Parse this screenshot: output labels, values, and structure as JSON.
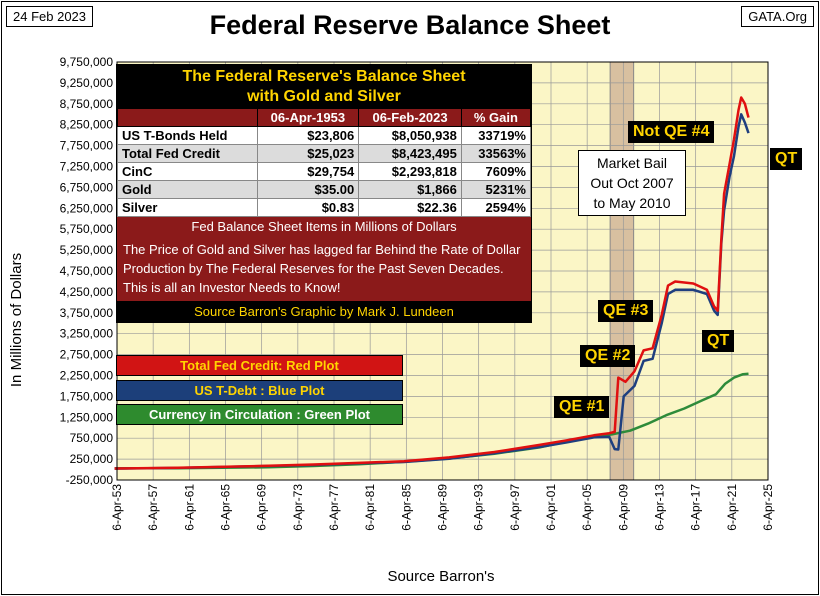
{
  "header": {
    "date": "24 Feb 2023",
    "source": "GATA.Org",
    "title": "Federal Reserve Balance Sheet"
  },
  "axes": {
    "ylabel": "In Millions of Dollars",
    "xlabel": "Source Barron's"
  },
  "info": {
    "title_line1": "The Federal Reserve's Balance Sheet",
    "title_line2": "with Gold and Silver",
    "columns": [
      "",
      "06-Apr-1953",
      "06-Feb-2023",
      "% Gain"
    ],
    "rows": [
      {
        "label": "US T-Bonds Held",
        "v1953": "$23,806",
        "v2023": "$8,050,938",
        "gain": "33719%"
      },
      {
        "label": "Total Fed Credit",
        "v1953": "$25,023",
        "v2023": "$8,423,495",
        "gain": "33563%"
      },
      {
        "label": "CinC",
        "v1953": "$29,754",
        "v2023": "$2,293,818",
        "gain": "7609%"
      },
      {
        "label": "Gold",
        "v1953": "$35.00",
        "v2023": "$1,866",
        "gain": "5231%"
      },
      {
        "label": "Silver",
        "v1953": "$0.83",
        "v2023": "$22.36",
        "gain": "2594%"
      }
    ],
    "units_note": "Fed Balance Sheet Items in Millions of Dollars",
    "paragraph": "The Price of Gold and Silver has lagged far Behind the Rate of Dollar Production by The Federal Reserves for the Past Seven Decades.  This is all an Investor Needs to Know!",
    "footer": "Source Barron's   Graphic by Mark J. Lundeen"
  },
  "legend": {
    "red": "Total Fed Credit: Red Plot",
    "blue": "US T-Debt : Blue Plot",
    "green": "Currency in Circulation : Green Plot"
  },
  "annotations": {
    "qe1": "QE #1",
    "qe2": "QE #2",
    "qe3": "QE #3",
    "qe4": "Not QE #4",
    "qt1": "QT",
    "qt2": "QT",
    "market_line1": "Market Bail",
    "market_line2": "Out Oct 2007",
    "market_line3": "to May 2010"
  },
  "colors": {
    "plot_bg": "#fbf6c6",
    "shade": "#d8c0a0",
    "fed_credit": "#e01010",
    "t_debt": "#1f3f7f",
    "cinc": "#2e8b3a"
  },
  "chart_data": {
    "type": "line",
    "y_ticks": [
      "-250,000",
      "250,000",
      "750,000",
      "1,250,000",
      "1,750,000",
      "2,250,000",
      "2,750,000",
      "3,250,000",
      "3,750,000",
      "4,250,000",
      "4,750,000",
      "5,250,000",
      "5,750,000",
      "6,250,000",
      "6,750,000",
      "7,250,000",
      "7,750,000",
      "8,250,000",
      "8,750,000",
      "9,250,000",
      "9,750,000"
    ],
    "x_ticks": [
      "6-Apr-53",
      "6-Apr-57",
      "6-Apr-61",
      "6-Apr-65",
      "6-Apr-69",
      "6-Apr-73",
      "6-Apr-77",
      "6-Apr-81",
      "6-Apr-85",
      "6-Apr-89",
      "6-Apr-93",
      "6-Apr-97",
      "6-Apr-01",
      "6-Apr-05",
      "6-Apr-09",
      "6-Apr-13",
      "6-Apr-17",
      "6-Apr-21",
      "6-Apr-25"
    ],
    "x_range": [
      1953.26,
      2025.26
    ],
    "y_range": [
      -250000,
      9750000
    ],
    "shaded_period": [
      2007.8,
      2010.4
    ],
    "series": [
      {
        "name": "Total Fed Credit",
        "color": "#e01010",
        "x": [
          1953,
          1960,
          1970,
          1975,
          1980,
          1985,
          1990,
          1995,
          2000,
          2003,
          2006,
          2007.7,
          2008.3,
          2008.7,
          2009.5,
          2010.5,
          2011.5,
          2012.5,
          2013.5,
          2014.2,
          2015,
          2017,
          2018.5,
          2019.3,
          2019.7,
          2020.1,
          2020.4,
          2021,
          2021.5,
          2022,
          2022.3,
          2022.7,
          2023.1
        ],
        "y": [
          25023,
          45000,
          90000,
          120000,
          160000,
          200000,
          290000,
          420000,
          590000,
          700000,
          820000,
          870000,
          900000,
          2200000,
          2100000,
          2350000,
          2850000,
          2900000,
          3700000,
          4400000,
          4500000,
          4450000,
          4300000,
          3900000,
          3800000,
          5500000,
          6600000,
          7300000,
          7900000,
          8600000,
          8900000,
          8750000,
          8420000
        ]
      },
      {
        "name": "US T-Debt",
        "color": "#1f3f7f",
        "x": [
          1953,
          1960,
          1970,
          1975,
          1980,
          1985,
          1990,
          1995,
          2000,
          2003,
          2006,
          2007.7,
          2008.3,
          2008.7,
          2009.3,
          2010.5,
          2011.5,
          2012.5,
          2013.5,
          2014.2,
          2015,
          2017,
          2018.5,
          2019.3,
          2019.7,
          2020.1,
          2020.4,
          2021,
          2021.5,
          2022,
          2022.3,
          2022.7,
          2023.1
        ],
        "y": [
          23806,
          40000,
          85000,
          110000,
          150000,
          180000,
          260000,
          390000,
          540000,
          650000,
          770000,
          780000,
          490000,
          480000,
          1750000,
          2000000,
          2600000,
          2650000,
          3500000,
          4200000,
          4300000,
          4300000,
          4200000,
          3800000,
          3700000,
          5400000,
          6200000,
          7000000,
          7500000,
          8200000,
          8500000,
          8300000,
          8050000
        ]
      },
      {
        "name": "Currency in Circulation",
        "color": "#2e8b3a",
        "x": [
          1953,
          1960,
          1970,
          1975,
          1980,
          1985,
          1990,
          1995,
          2000,
          2005,
          2008,
          2010,
          2012,
          2014,
          2016,
          2018,
          2019.5,
          2020.5,
          2021.5,
          2022.5,
          2023.1
        ],
        "y": [
          29754,
          33000,
          55000,
          85000,
          125000,
          185000,
          265000,
          380000,
          530000,
          760000,
          840000,
          930000,
          1100000,
          1300000,
          1460000,
          1660000,
          1800000,
          2050000,
          2200000,
          2280000,
          2293818
        ]
      }
    ]
  }
}
